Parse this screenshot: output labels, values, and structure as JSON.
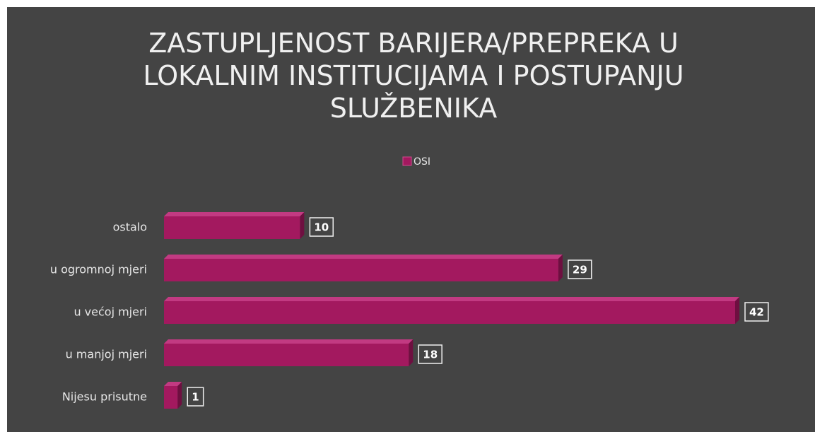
{
  "chart_data": {
    "type": "bar",
    "orientation": "horizontal",
    "title": "ZASTUPLJENOST BARIJERA/PREPREKA U LOKALNIM INSTITUCIJAMA I POSTUPANJU SLUŽBENIKA",
    "categories": [
      "ostalo",
      "u ogromnoj mjeri",
      "u većoj mjeri",
      "u manjoj mjeri",
      "Nijesu prisutne"
    ],
    "series": [
      {
        "name": "OSI",
        "color": "#a3195f",
        "values": [
          10,
          29,
          42,
          18,
          1
        ]
      }
    ],
    "legend": "top"
  }
}
